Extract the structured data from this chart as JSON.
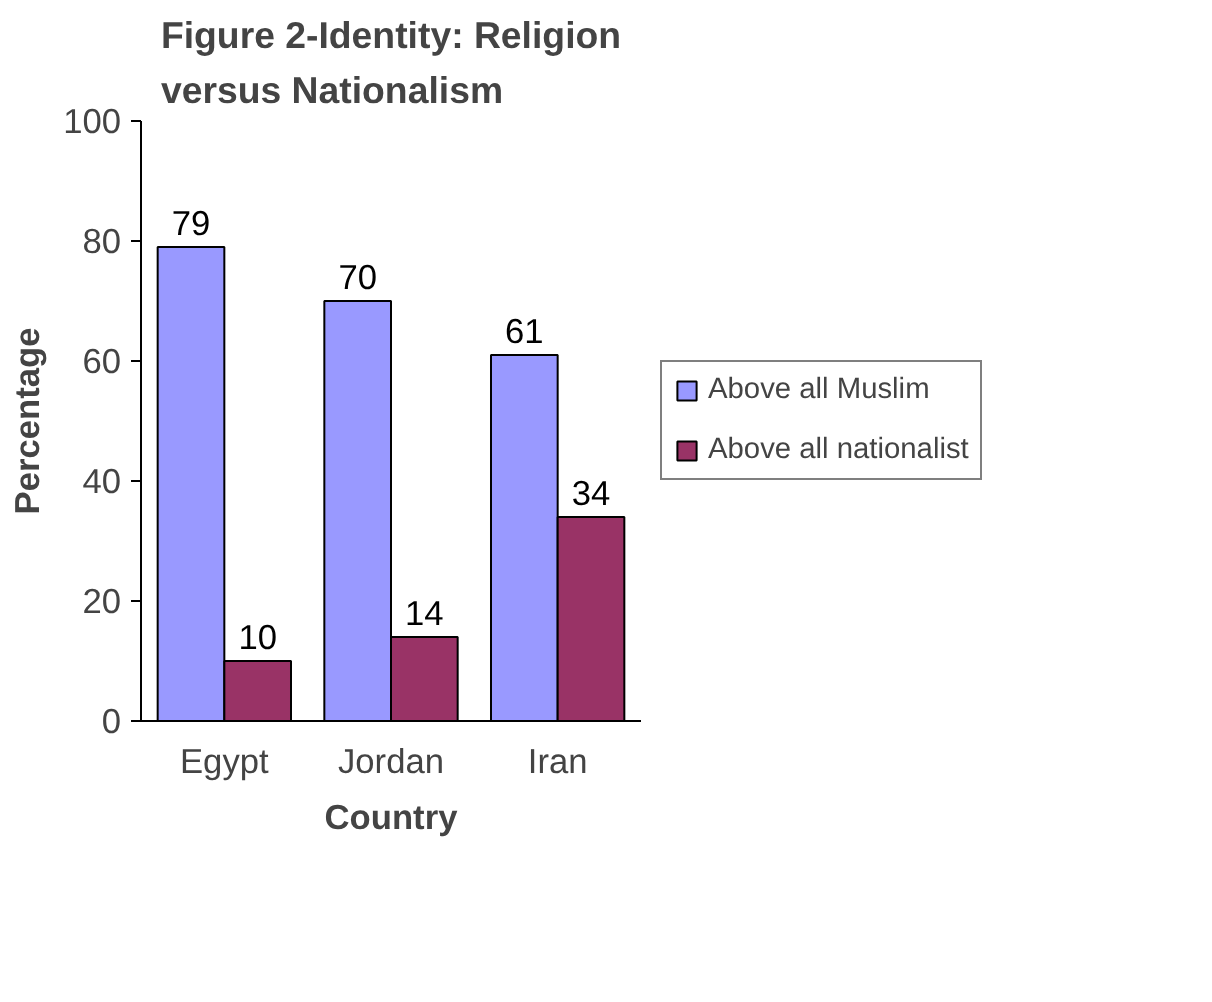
{
  "chart_data": {
    "type": "bar",
    "title": "Figure 2-Identity: Religion versus Nationalism",
    "xlabel": "Country",
    "ylabel": "Percentage",
    "categories": [
      "Egypt",
      "Jordan",
      "Iran"
    ],
    "series": [
      {
        "name": "Above all Muslim",
        "color": "#9999ff",
        "values": [
          79,
          70,
          61
        ]
      },
      {
        "name": "Above all nationalist",
        "color": "#993366",
        "values": [
          10,
          14,
          34
        ]
      }
    ],
    "ylim": [
      0,
      100
    ],
    "yticks": [
      0,
      20,
      40,
      60,
      80,
      100
    ],
    "grid": false,
    "legend": "right",
    "data_labels": true
  }
}
